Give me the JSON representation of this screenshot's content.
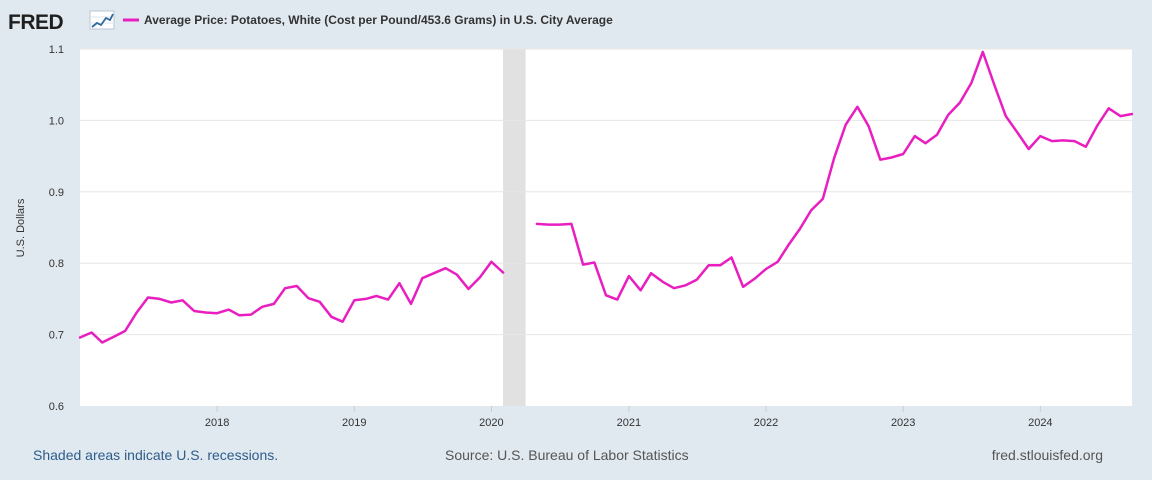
{
  "header": {
    "logo": "FRED",
    "legend_label": "Average Price: Potatoes, White (Cost per Pound/453.6 Grams) in U.S. City Average"
  },
  "footer": {
    "recession_note": "Shaded areas indicate U.S. recessions.",
    "source": "Source: U.S. Bureau of Labor Statistics",
    "site": "fred.stlouisfed.org"
  },
  "colors": {
    "series": "#e91ec0",
    "background": "#e1e9f0",
    "plot": "#ffffff",
    "recession": "#e1e1e1",
    "grid": "#e6e6e6"
  },
  "chart_data": {
    "type": "line",
    "title": "",
    "xlabel": "",
    "ylabel": "U.S. Dollars",
    "ylim": [
      0.6,
      1.1
    ],
    "xlim": [
      "2017-01-01",
      "2024-09-01"
    ],
    "yticks": [
      "0.6",
      "0.7",
      "0.8",
      "0.9",
      "1.0",
      "1.1"
    ],
    "xticks": [
      "2018",
      "2019",
      "2020",
      "2021",
      "2022",
      "2023",
      "2024"
    ],
    "grid": true,
    "legend_position": "top-left",
    "recessions": [
      {
        "start": "2020-02-01",
        "end": "2020-04-01"
      }
    ],
    "series": [
      {
        "name": "Average Price: Potatoes, White (Cost per Pound/453.6 Grams) in U.S. City Average",
        "points": [
          [
            "2017-01",
            0.696
          ],
          [
            "2017-02",
            0.703
          ],
          [
            "2017-03",
            0.689
          ],
          [
            "2017-04",
            0.697
          ],
          [
            "2017-05",
            0.705
          ],
          [
            "2017-06",
            0.731
          ],
          [
            "2017-07",
            0.752
          ],
          [
            "2017-08",
            0.75
          ],
          [
            "2017-09",
            0.745
          ],
          [
            "2017-10",
            0.748
          ],
          [
            "2017-11",
            0.733
          ],
          [
            "2017-12",
            0.731
          ],
          [
            "2018-01",
            0.73
          ],
          [
            "2018-02",
            0.735
          ],
          [
            "2018-03",
            0.727
          ],
          [
            "2018-04",
            0.728
          ],
          [
            "2018-05",
            0.739
          ],
          [
            "2018-06",
            0.743
          ],
          [
            "2018-07",
            0.765
          ],
          [
            "2018-08",
            0.768
          ],
          [
            "2018-09",
            0.751
          ],
          [
            "2018-10",
            0.746
          ],
          [
            "2018-11",
            0.725
          ],
          [
            "2018-12",
            0.718
          ],
          [
            "2019-01",
            0.748
          ],
          [
            "2019-02",
            0.75
          ],
          [
            "2019-03",
            0.754
          ],
          [
            "2019-04",
            0.749
          ],
          [
            "2019-05",
            0.772
          ],
          [
            "2019-06",
            0.743
          ],
          [
            "2019-07",
            0.779
          ],
          [
            "2019-08",
            0.786
          ],
          [
            "2019-09",
            0.793
          ],
          [
            "2019-10",
            0.784
          ],
          [
            "2019-11",
            0.764
          ],
          [
            "2019-12",
            0.78
          ],
          [
            "2020-01",
            0.802
          ],
          [
            "2020-02",
            0.787
          ],
          null,
          [
            "2020-05",
            0.855
          ],
          [
            "2020-06",
            0.854
          ],
          [
            "2020-07",
            0.854
          ],
          [
            "2020-08",
            0.855
          ],
          [
            "2020-09",
            0.798
          ],
          [
            "2020-10",
            0.801
          ],
          [
            "2020-11",
            0.755
          ],
          [
            "2020-12",
            0.749
          ],
          [
            "2021-01",
            0.782
          ],
          [
            "2021-02",
            0.762
          ],
          [
            "2021-03",
            0.786
          ],
          [
            "2021-04",
            0.774
          ],
          [
            "2021-05",
            0.765
          ],
          [
            "2021-06",
            0.769
          ],
          [
            "2021-07",
            0.777
          ],
          [
            "2021-08",
            0.797
          ],
          [
            "2021-09",
            0.797
          ],
          [
            "2021-10",
            0.808
          ],
          [
            "2021-11",
            0.767
          ],
          [
            "2021-12",
            0.778
          ],
          [
            "2022-01",
            0.792
          ],
          [
            "2022-02",
            0.802
          ],
          [
            "2022-03",
            0.825
          ],
          [
            "2022-04",
            0.848
          ],
          [
            "2022-05",
            0.874
          ],
          [
            "2022-06",
            0.89
          ],
          [
            "2022-07",
            0.947
          ],
          [
            "2022-08",
            0.994
          ],
          [
            "2022-09",
            1.019
          ],
          [
            "2022-10",
            0.992
          ],
          [
            "2022-11",
            0.945
          ],
          [
            "2022-12",
            0.948
          ],
          [
            "2023-01",
            0.953
          ],
          [
            "2023-02",
            0.978
          ],
          [
            "2023-03",
            0.968
          ],
          [
            "2023-04",
            0.98
          ],
          [
            "2023-05",
            1.008
          ],
          [
            "2023-06",
            1.025
          ],
          [
            "2023-07",
            1.052
          ],
          [
            "2023-08",
            1.096
          ],
          [
            "2023-09",
            1.049
          ],
          [
            "2023-10",
            1.006
          ],
          [
            "2023-11",
            0.983
          ],
          [
            "2023-12",
            0.96
          ],
          [
            "2024-01",
            0.978
          ],
          [
            "2024-02",
            0.971
          ],
          [
            "2024-03",
            0.972
          ],
          [
            "2024-04",
            0.971
          ],
          [
            "2024-05",
            0.963
          ],
          [
            "2024-06",
            0.993
          ],
          [
            "2024-07",
            1.017
          ],
          [
            "2024-08",
            1.006
          ],
          [
            "2024-09",
            1.009
          ]
        ]
      }
    ]
  }
}
